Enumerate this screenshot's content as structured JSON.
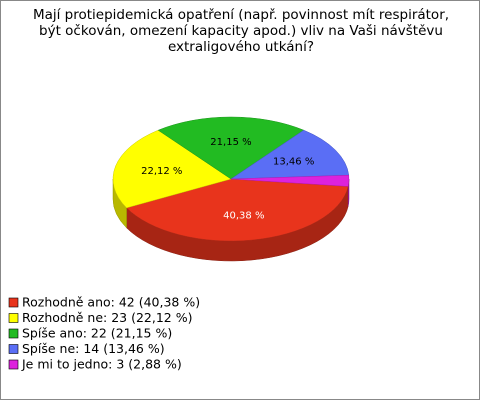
{
  "chart_data": {
    "type": "pie",
    "title": "Mají protiepidemická opatření (např. povinnost mít respirátor, být očkován, omezení kapacity apod.) vliv na Vaši návštěvu extraligového utkání?",
    "categories": [
      "Rozhodně ano: 42 (40,38 %)",
      "Rozhodně ne: 23 (22,12 %)",
      "Spíše ano: 22 (21,15 %)",
      "Spíše ne: 14 (13,46 %)",
      "Je mi to jedno: 3 (2,88 %)"
    ],
    "values": [
      40.38,
      22.12,
      21.15,
      13.46,
      2.88
    ],
    "value_labels": [
      "40,38 %",
      "22,12 %",
      "21,15 %",
      "13,46 %",
      null
    ],
    "colors": [
      "#e8341c",
      "#ffff00",
      "#22bb22",
      "#5a6ef5",
      "#dd22dd"
    ],
    "label_colors": [
      "#ffffff",
      "#000000",
      "#000000",
      "#000000",
      "#000000"
    ]
  }
}
